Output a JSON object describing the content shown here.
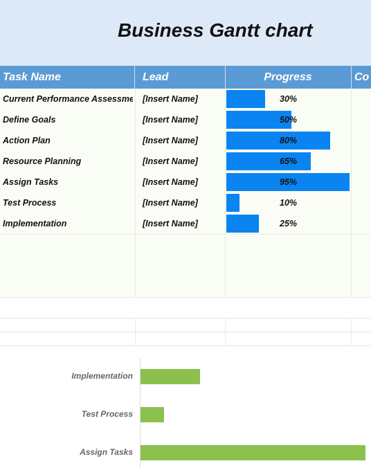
{
  "title": "Business Gantt chart",
  "headers": {
    "task": "Task Name",
    "lead": "Lead",
    "progress": "Progress",
    "extra": "Co"
  },
  "tasks": [
    {
      "name": "Current Performance Assessment",
      "lead": "[Insert Name]",
      "progress": 30,
      "progress_label": "30%"
    },
    {
      "name": "Define Goals",
      "lead": "[Insert Name]",
      "progress": 50,
      "progress_label": "50%"
    },
    {
      "name": "Action Plan",
      "lead": "[Insert Name]",
      "progress": 80,
      "progress_label": "80%"
    },
    {
      "name": "Resource Planning",
      "lead": "[Insert Name]",
      "progress": 65,
      "progress_label": "65%"
    },
    {
      "name": "Assign Tasks",
      "lead": "[Insert Name]",
      "progress": 95,
      "progress_label": "95%"
    },
    {
      "name": "Test Process",
      "lead": "[Insert Name]",
      "progress": 10,
      "progress_label": "10%"
    },
    {
      "name": "Implementation",
      "lead": "[Insert Name]",
      "progress": 25,
      "progress_label": "25%"
    }
  ],
  "colors": {
    "title_band": "#dde9f7",
    "header": "#5b9bd5",
    "progress_bar": "#0a84f0",
    "gantt_bar": "#8bc04f"
  },
  "chart_data": {
    "type": "bar",
    "orientation": "horizontal",
    "categories": [
      "Implementation",
      "Test Process",
      "Assign Tasks"
    ],
    "values": [
      25,
      10,
      95
    ],
    "title": "",
    "xlabel": "",
    "ylabel": "",
    "xlim": [
      0,
      95
    ]
  }
}
